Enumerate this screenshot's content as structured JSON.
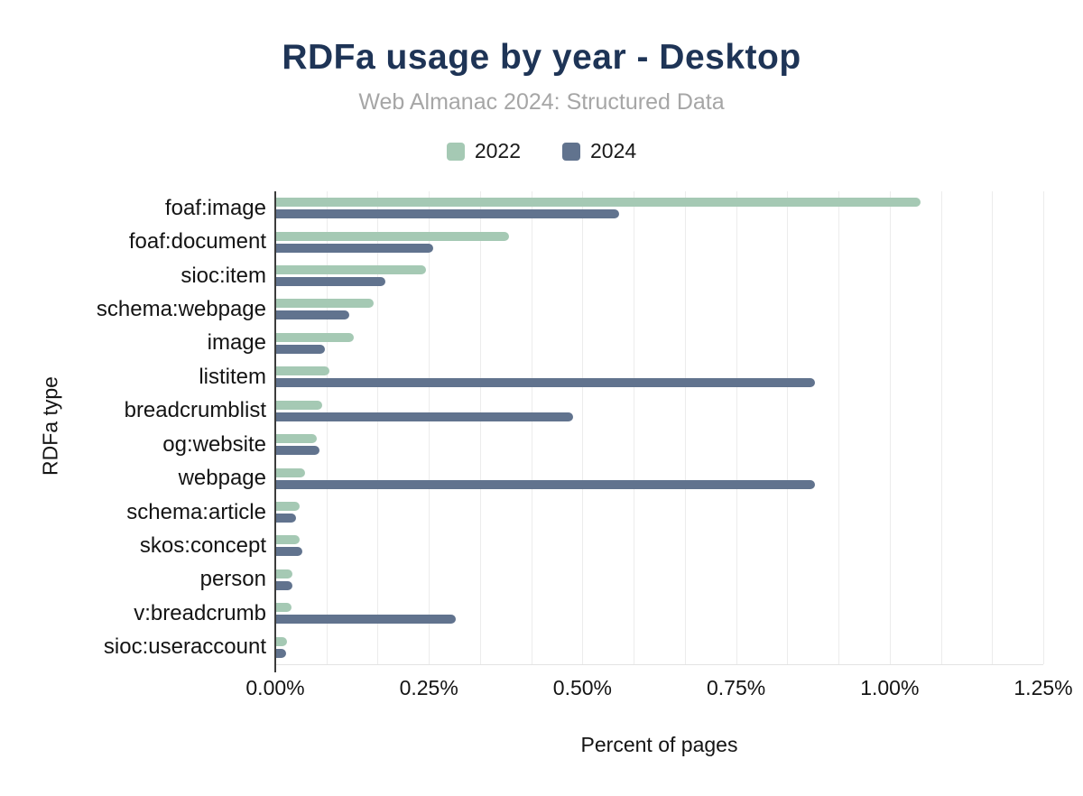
{
  "chart_data": {
    "type": "bar",
    "orientation": "horizontal",
    "title": "RDFa usage by year - Desktop",
    "subtitle": "Web Almanac 2024: Structured Data",
    "xlabel": "Percent of pages",
    "ylabel": "RDFa type",
    "xlim": [
      0,
      1.25
    ],
    "x_unit": "%",
    "grid": true,
    "minor_gridline_step": 0.0833333,
    "legend_position": "top",
    "xticks": [
      {
        "value": 0.0,
        "label": "0.00%"
      },
      {
        "value": 0.25,
        "label": "0.25%"
      },
      {
        "value": 0.5,
        "label": "0.50%"
      },
      {
        "value": 0.75,
        "label": "0.75%"
      },
      {
        "value": 1.0,
        "label": "1.00%"
      },
      {
        "value": 1.25,
        "label": "1.25%"
      }
    ],
    "categories": [
      "foaf:image",
      "foaf:document",
      "sioc:item",
      "schema:webpage",
      "image",
      "listitem",
      "breadcrumblist",
      "og:website",
      "webpage",
      "schema:article",
      "skos:concept",
      "person",
      "v:breadcrumb",
      "sioc:useraccount"
    ],
    "series": [
      {
        "name": "2022",
        "color": "#a5c9b4",
        "values": [
          1.05,
          0.38,
          0.245,
          0.16,
          0.128,
          0.088,
          0.077,
          0.068,
          0.048,
          0.039,
          0.04,
          0.028,
          0.027,
          0.019
        ]
      },
      {
        "name": "2024",
        "color": "#61738e",
        "values": [
          0.56,
          0.257,
          0.179,
          0.12,
          0.081,
          0.878,
          0.485,
          0.072,
          0.878,
          0.034,
          0.044,
          0.028,
          0.294,
          0.018
        ]
      }
    ]
  },
  "colors": {
    "series_2022": "#a5c9b4",
    "series_2024": "#61738e",
    "title": "#1e3456",
    "subtitle": "#a6a6a6",
    "axis_line": "#3c3c3c",
    "gridline": "#ececec"
  }
}
